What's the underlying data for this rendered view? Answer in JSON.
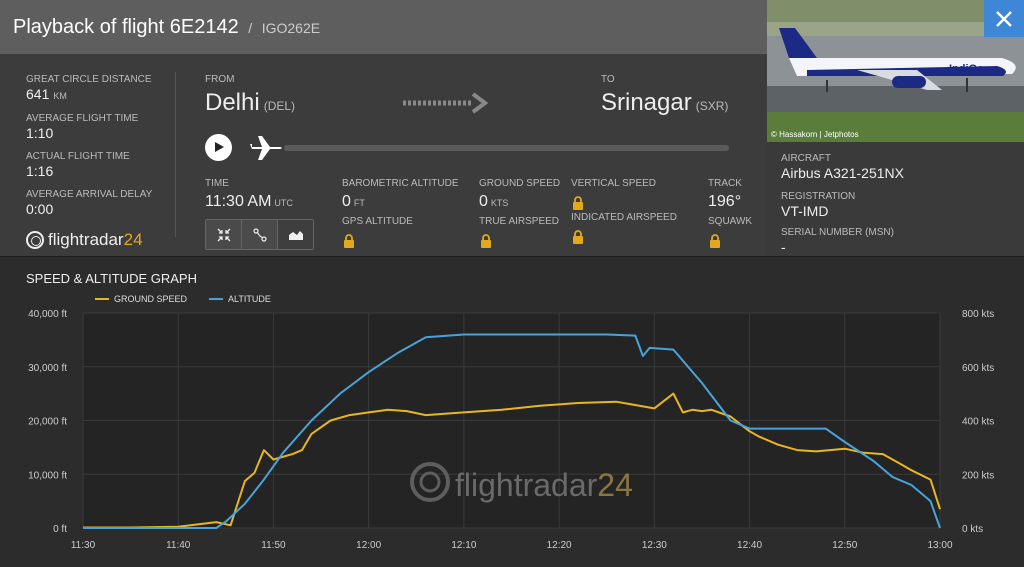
{
  "header": {
    "title": "Playback of flight 6E2142",
    "callsign": "IGO262E"
  },
  "stats": [
    {
      "label": "Great circle distance",
      "value": "641",
      "unit": "KM"
    },
    {
      "label": "Average flight time",
      "value": "1:10",
      "unit": ""
    },
    {
      "label": "Actual flight time",
      "value": "1:16",
      "unit": ""
    },
    {
      "label": "Average arrival delay",
      "value": "0:00",
      "unit": ""
    }
  ],
  "logo": {
    "text": "flightradar",
    "number": "24"
  },
  "route": {
    "from_label": "FROM",
    "from_city": "Delhi",
    "from_code": "(DEL)",
    "to_label": "TO",
    "to_city": "Srinagar",
    "to_code": "(SXR)"
  },
  "flight": {
    "time_label": "TIME",
    "time_value": "11:30 AM",
    "time_unit": "UTC",
    "baro_label": "BAROMETRIC ALTITUDE",
    "baro_value": "0",
    "baro_unit": "FT",
    "gps_label": "GPS ALTITUDE",
    "gs_label": "GROUND SPEED",
    "gs_value": "0",
    "gs_unit": "KTS",
    "tas_label": "TRUE AIRSPEED",
    "vs_label": "VERTICAL SPEED",
    "ias_label": "INDICATED AIRSPEED",
    "track_label": "TRACK",
    "track_value": "196°",
    "squawk_label": "SQUAWK"
  },
  "photo": {
    "credit": "© Hassakorn | Jetphotos",
    "livery_text": "IndiGo"
  },
  "aircraft": {
    "aircraft_label": "AIRCRAFT",
    "aircraft_value": "Airbus A321-251NX",
    "reg_label": "REGISTRATION",
    "reg_value": "VT-IMD",
    "msn_label": "SERIAL NUMBER (MSN)",
    "msn_value": "-"
  },
  "colors": {
    "accent": "#e3a91c",
    "altitude": "#4aa3d8",
    "ground_speed": "#e8b623",
    "close": "#3e86d6"
  },
  "chart_data": {
    "type": "line",
    "title": "SPEED & ALTITUDE GRAPH",
    "x_ticks": [
      "11:30",
      "11:40",
      "11:50",
      "12:00",
      "12:10",
      "12:20",
      "12:30",
      "12:40",
      "12:50",
      "13:00"
    ],
    "x_range_minutes": [
      0,
      90
    ],
    "y_left": {
      "ticks": [
        "0 ft",
        "10,000 ft",
        "20,000 ft",
        "30,000 ft",
        "40,000 ft"
      ],
      "range": [
        0,
        40000
      ]
    },
    "y_right": {
      "ticks": [
        "0 kts",
        "200 kts",
        "400 kts",
        "600 kts",
        "800 kts"
      ],
      "range": [
        0,
        800
      ]
    },
    "grid": true,
    "legend_position": "top-left",
    "watermark": {
      "text": "flightradar",
      "number": "24"
    },
    "series": [
      {
        "name": "GROUND SPEED",
        "axis": "right",
        "x": [
          0,
          5,
          10,
          14,
          15.5,
          17,
          18,
          19,
          20,
          22,
          23,
          24,
          26,
          28,
          30,
          32,
          34,
          36,
          38,
          40,
          44,
          48,
          52,
          56,
          60,
          62,
          63,
          64,
          65,
          66,
          68,
          70,
          71,
          73,
          75,
          77,
          80,
          82,
          84,
          86,
          87,
          89,
          90
        ],
        "y": [
          2,
          2,
          5,
          22,
          10,
          175,
          205,
          290,
          255,
          275,
          290,
          350,
          400,
          420,
          430,
          440,
          435,
          420,
          425,
          430,
          440,
          455,
          465,
          470,
          445,
          500,
          430,
          440,
          435,
          440,
          415,
          360,
          340,
          310,
          290,
          285,
          295,
          280,
          275,
          235,
          215,
          180,
          70
        ]
      },
      {
        "name": "ALTITUDE",
        "axis": "left",
        "x": [
          0,
          10,
          14,
          15,
          17,
          19,
          21,
          24,
          27,
          30,
          33,
          36,
          40,
          45,
          50,
          55,
          58,
          58.8,
          59.5,
          62,
          65,
          68,
          70,
          72,
          78,
          80,
          83,
          85,
          87,
          89,
          90
        ],
        "y": [
          0,
          0,
          0,
          1200,
          4500,
          9000,
          14000,
          20000,
          25000,
          29000,
          32500,
          35500,
          36000,
          36000,
          36000,
          36000,
          35800,
          32000,
          33500,
          33200,
          27000,
          20000,
          18500,
          18500,
          18500,
          16000,
          12500,
          9500,
          8000,
          5000,
          0
        ]
      }
    ]
  }
}
